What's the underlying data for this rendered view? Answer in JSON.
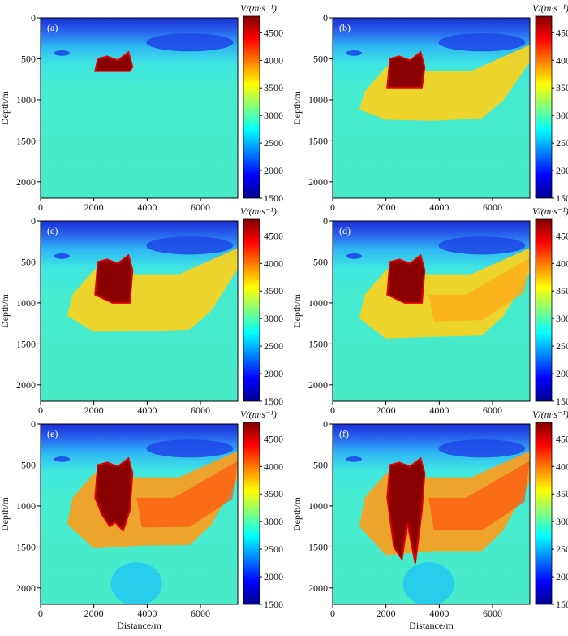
{
  "figure": {
    "xlabel": "Distance/m",
    "ylabel": "Depth/m",
    "colorbar_label": "V/(m·s⁻¹)",
    "colorbar_ticks": [
      "4500",
      "4000",
      "3500",
      "3000",
      "2500",
      "2000",
      "1500"
    ],
    "x_ticks": [
      "0",
      "2000",
      "4000",
      "6000"
    ],
    "y_ticks": [
      "0",
      "500",
      "1000",
      "1500",
      "2000"
    ]
  },
  "chart_data": [
    {
      "type": "heatmap",
      "panel": "(a)",
      "xlim": [
        0,
        7400
      ],
      "ylim": [
        2200,
        0
      ],
      "zlim": [
        1500,
        4800
      ],
      "xlabel": "",
      "ylabel": "Depth/m",
      "colorbar_label": "V/(m·s⁻¹)"
    },
    {
      "type": "heatmap",
      "panel": "(b)",
      "xlim": [
        0,
        7400
      ],
      "ylim": [
        2200,
        0
      ],
      "zlim": [
        1500,
        4800
      ],
      "xlabel": "",
      "ylabel": "Depth/m",
      "colorbar_label": "V/(m·s⁻¹)"
    },
    {
      "type": "heatmap",
      "panel": "(c)",
      "xlim": [
        0,
        7400
      ],
      "ylim": [
        2200,
        0
      ],
      "zlim": [
        1500,
        4800
      ],
      "xlabel": "",
      "ylabel": "Depth/m",
      "colorbar_label": "V/(m·s⁻¹)"
    },
    {
      "type": "heatmap",
      "panel": "(d)",
      "xlim": [
        0,
        7400
      ],
      "ylim": [
        2200,
        0
      ],
      "zlim": [
        1500,
        4800
      ],
      "xlabel": "",
      "ylabel": "Depth/m",
      "colorbar_label": "V/(m·s⁻¹)"
    },
    {
      "type": "heatmap",
      "panel": "(e)",
      "xlim": [
        0,
        7400
      ],
      "ylim": [
        2200,
        0
      ],
      "zlim": [
        1500,
        4800
      ],
      "xlabel": "Distance/m",
      "ylabel": "Depth/m",
      "colorbar_label": "V/(m·s⁻¹)"
    },
    {
      "type": "heatmap",
      "panel": "(f)",
      "xlim": [
        0,
        7400
      ],
      "ylim": [
        2200,
        0
      ],
      "zlim": [
        1500,
        4800
      ],
      "xlabel": "Distance/m",
      "ylabel": "Depth/m",
      "colorbar_label": "V/(m·s⁻¹)"
    }
  ]
}
